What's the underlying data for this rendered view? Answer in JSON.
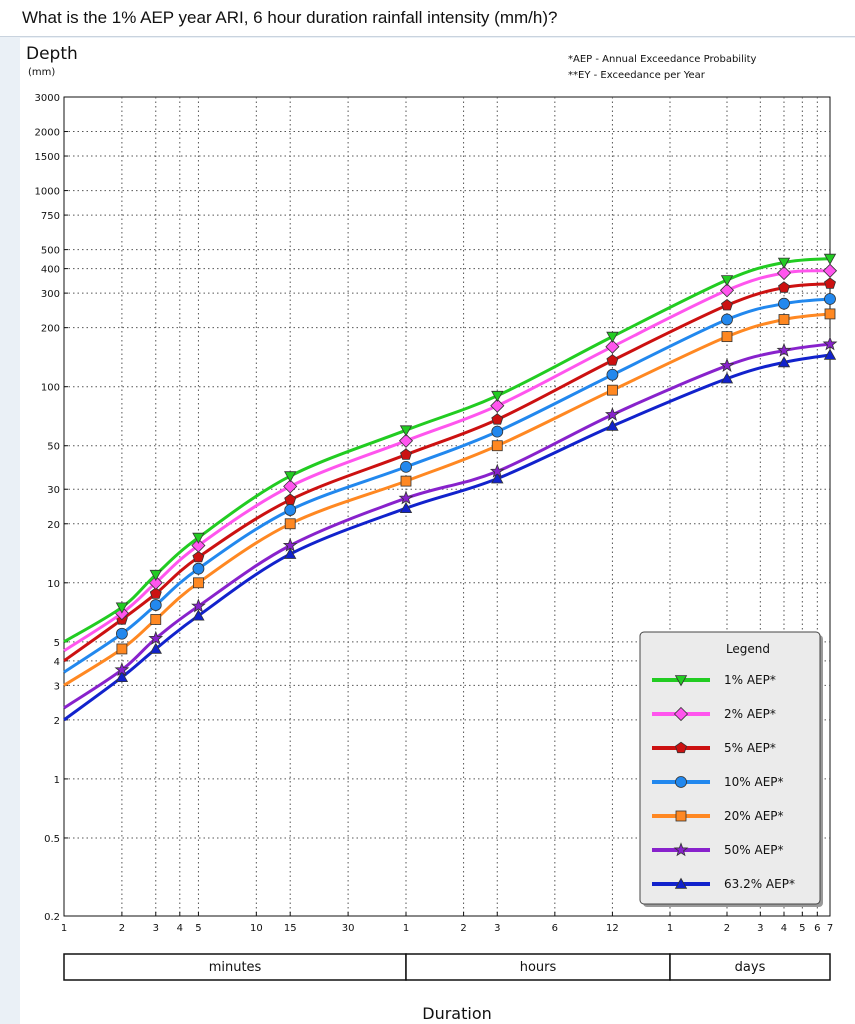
{
  "question": "What is the 1% AEP year ARI, 6 hour duration rainfall intensity (mm/h)?",
  "chart_data": {
    "type": "line",
    "ylabel": "Depth",
    "ylabel_unit": "(mm)",
    "xlabel": "Duration",
    "notes": [
      "*AEP - Annual Exceedance Probability",
      "**EY - Exceedance per Year"
    ],
    "y_ticks": [
      "3000",
      "2000",
      "1500",
      "1000",
      "750",
      "500",
      "400",
      "300",
      "200",
      "100",
      "50",
      "30",
      "20",
      "10",
      "5",
      "4",
      "3",
      "2",
      "1",
      "0.5",
      "0.2"
    ],
    "y_tick_values": [
      3000,
      2000,
      1500,
      1000,
      750,
      500,
      400,
      300,
      200,
      100,
      50,
      30,
      20,
      10,
      5,
      4,
      3,
      2,
      1,
      0.5,
      0.2
    ],
    "ylim": [
      0.2,
      3000
    ],
    "x_ticks": [
      {
        "label": "1",
        "minutes": 1
      },
      {
        "label": "2",
        "minutes": 2
      },
      {
        "label": "3",
        "minutes": 3
      },
      {
        "label": "4",
        "minutes": 4
      },
      {
        "label": "5",
        "minutes": 5
      },
      {
        "label": "10",
        "minutes": 10
      },
      {
        "label": "15",
        "minutes": 15
      },
      {
        "label": "30",
        "minutes": 30
      },
      {
        "label": "1",
        "minutes": 60
      },
      {
        "label": "2",
        "minutes": 120
      },
      {
        "label": "3",
        "minutes": 180
      },
      {
        "label": "6",
        "minutes": 360
      },
      {
        "label": "12",
        "minutes": 720
      },
      {
        "label": "1",
        "minutes": 1440
      },
      {
        "label": "2",
        "minutes": 2880
      },
      {
        "label": "3",
        "minutes": 4320
      },
      {
        "label": "4",
        "minutes": 5760
      },
      {
        "label": "5",
        "minutes": 7200
      },
      {
        "label": "6",
        "minutes": 8640
      },
      {
        "label": "7",
        "minutes": 10080
      }
    ],
    "x_groups": [
      {
        "label": "minutes",
        "from": 1,
        "to": 60
      },
      {
        "label": "hours",
        "from": 60,
        "to": 1440
      },
      {
        "label": "days",
        "from": 1440,
        "to": 10080
      }
    ],
    "x_minutes": [
      1,
      2,
      3,
      5,
      15,
      60,
      180,
      720,
      2880,
      5760,
      10080
    ],
    "legend_title": "Legend",
    "legend_position": "bottom-right",
    "series": [
      {
        "name": "1% AEP*",
        "color": "#22cc22",
        "marker": "triangle-down",
        "values": [
          5,
          7.5,
          11,
          17,
          35,
          60,
          90,
          180,
          350,
          430,
          450
        ]
      },
      {
        "name": "2% AEP*",
        "color": "#ff55ee",
        "marker": "diamond",
        "values": [
          4.5,
          7,
          10,
          15.5,
          31,
          53,
          80,
          160,
          310,
          380,
          390
        ]
      },
      {
        "name": "5% AEP*",
        "color": "#cc1111",
        "marker": "pentagon",
        "values": [
          4,
          6.5,
          8.8,
          13.5,
          26.5,
          45,
          68,
          136,
          260,
          320,
          335
        ]
      },
      {
        "name": "10% AEP*",
        "color": "#2288ee",
        "marker": "circle",
        "values": [
          3.5,
          5.5,
          7.7,
          11.8,
          23.5,
          39,
          59,
          115,
          220,
          265,
          280
        ]
      },
      {
        "name": "20% AEP*",
        "color": "#ff8822",
        "marker": "square",
        "values": [
          3,
          4.6,
          6.5,
          10,
          20,
          33,
          50,
          96,
          180,
          220,
          235
        ]
      },
      {
        "name": "50% AEP*",
        "color": "#8822cc",
        "marker": "star",
        "values": [
          2.3,
          3.6,
          5.2,
          7.6,
          15.5,
          27,
          37,
          72,
          128,
          153,
          165
        ]
      },
      {
        "name": "63.2% AEP*",
        "color": "#1122cc",
        "marker": "triangle-up",
        "values": [
          2,
          3.3,
          4.6,
          6.8,
          14,
          24,
          34,
          63,
          110,
          133,
          145
        ]
      }
    ]
  }
}
